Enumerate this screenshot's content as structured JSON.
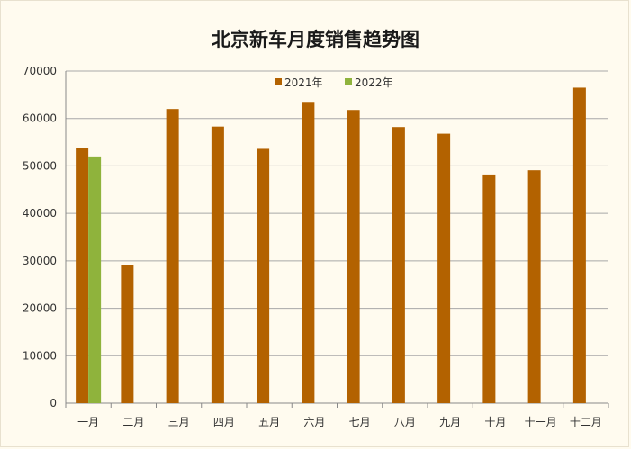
{
  "chart_data": {
    "type": "bar",
    "title": "北京新车月度销售趋势图",
    "categories": [
      "一月",
      "二月",
      "三月",
      "四月",
      "五月",
      "六月",
      "七月",
      "八月",
      "九月",
      "十月",
      "十一月",
      "十二月"
    ],
    "series": [
      {
        "name": "2021年",
        "color": "#b36200",
        "values": [
          53800,
          29200,
          62000,
          58300,
          53600,
          63500,
          61800,
          58200,
          56800,
          48200,
          49100,
          66500
        ]
      },
      {
        "name": "2022年",
        "color": "#8fb33c",
        "values": [
          52000,
          null,
          null,
          null,
          null,
          null,
          null,
          null,
          null,
          null,
          null,
          null
        ]
      }
    ],
    "ylim": [
      0,
      70000
    ],
    "yticks": [
      0,
      10000,
      20000,
      30000,
      40000,
      50000,
      60000,
      70000
    ],
    "grid": true,
    "legend_position": "top"
  }
}
